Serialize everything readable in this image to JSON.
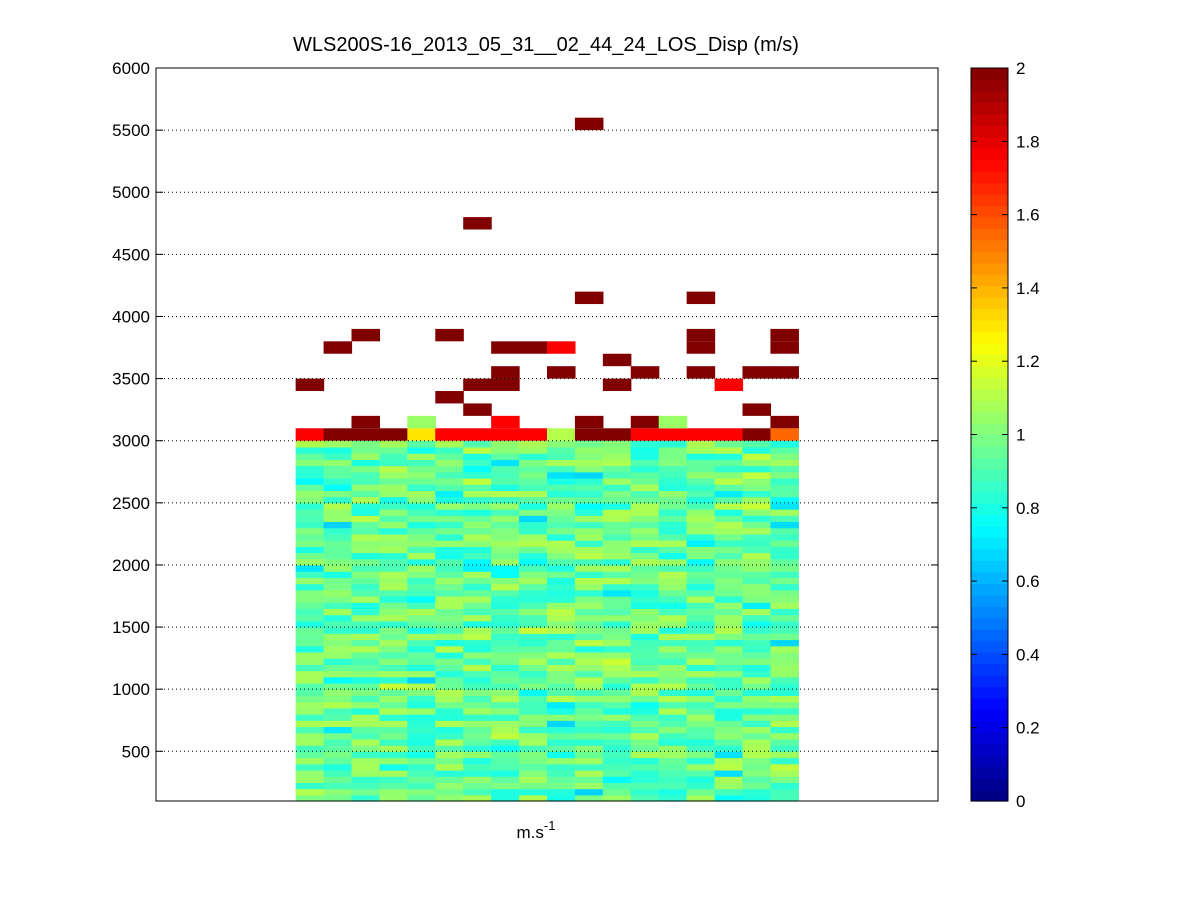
{
  "chart_data": {
    "type": "heatmap",
    "title": "WLS200S-16_2013_05_31__02_44_24_LOS_Disp (m/s)",
    "xlabel_base": "m.s",
    "xlabel_exp": "-1",
    "ylabel": "",
    "ylim": [
      100,
      6000
    ],
    "yticks": [
      500,
      1000,
      1500,
      2000,
      2500,
      3000,
      3500,
      4000,
      4500,
      5000,
      5500,
      6000
    ],
    "ygrid": true,
    "xgrid": false,
    "columns": 18,
    "column_range": [
      5,
      23
    ],
    "colorbar": {
      "colormap": "jet",
      "range": [
        0,
        2
      ],
      "ticks": [
        "0",
        "0.2",
        "0.4",
        "0.6",
        "0.8",
        "1",
        "1.2",
        "1.4",
        "1.6",
        "1.8",
        "2"
      ],
      "placement": "right"
    },
    "layers": {
      "low_bins_m": [
        100,
        3000
      ],
      "low_bin_height_m": 50,
      "low_values_range": [
        0.65,
        1.15
      ],
      "row_3050_values": [
        1.75,
        2,
        2,
        2,
        1.3,
        1.75,
        1.75,
        1.75,
        1.75,
        1.1,
        2,
        2,
        1.75,
        1.75,
        1.75,
        1.75,
        2,
        1.55
      ]
    },
    "high_cells": [
      {
        "col": 1,
        "alt": 3450,
        "v": 2
      },
      {
        "col": 2,
        "alt": 3750,
        "v": 2
      },
      {
        "col": 3,
        "alt": 3850,
        "v": 2
      },
      {
        "col": 6,
        "alt": 3850,
        "v": 2
      },
      {
        "col": 7,
        "alt": 4750,
        "v": 2
      },
      {
        "col": 6,
        "alt": 3350,
        "v": 2
      },
      {
        "col": 7,
        "alt": 3450,
        "v": 2
      },
      {
        "col": 8,
        "alt": 3450,
        "v": 2
      },
      {
        "col": 8,
        "alt": 3550,
        "v": 2
      },
      {
        "col": 8,
        "alt": 3750,
        "v": 2
      },
      {
        "col": 9,
        "alt": 3750,
        "v": 2
      },
      {
        "col": 10,
        "alt": 3750,
        "v": 1.75
      },
      {
        "col": 10,
        "alt": 3550,
        "v": 2
      },
      {
        "col": 11,
        "alt": 5550,
        "v": 2
      },
      {
        "col": 11,
        "alt": 4150,
        "v": 2
      },
      {
        "col": 12,
        "alt": 3650,
        "v": 2
      },
      {
        "col": 12,
        "alt": 3450,
        "v": 2
      },
      {
        "col": 13,
        "alt": 3550,
        "v": 2
      },
      {
        "col": 15,
        "alt": 4150,
        "v": 2
      },
      {
        "col": 15,
        "alt": 3750,
        "v": 2
      },
      {
        "col": 15,
        "alt": 3850,
        "v": 2
      },
      {
        "col": 15,
        "alt": 3550,
        "v": 2
      },
      {
        "col": 16,
        "alt": 3450,
        "v": 1.75
      },
      {
        "col": 17,
        "alt": 3550,
        "v": 2
      },
      {
        "col": 17,
        "alt": 3250,
        "v": 2
      },
      {
        "col": 18,
        "alt": 3550,
        "v": 2
      },
      {
        "col": 18,
        "alt": 3750,
        "v": 2
      },
      {
        "col": 18,
        "alt": 3850,
        "v": 2
      },
      {
        "col": 7,
        "alt": 3250,
        "v": 2
      },
      {
        "col": 3,
        "alt": 3150,
        "v": 2
      },
      {
        "col": 5,
        "alt": 3150,
        "v": 1.05
      },
      {
        "col": 8,
        "alt": 3150,
        "v": 1.75
      },
      {
        "col": 11,
        "alt": 3150,
        "v": 2
      },
      {
        "col": 13,
        "alt": 3150,
        "v": 2
      },
      {
        "col": 14,
        "alt": 3150,
        "v": 1.05
      },
      {
        "col": 18,
        "alt": 3150,
        "v": 2
      }
    ]
  }
}
